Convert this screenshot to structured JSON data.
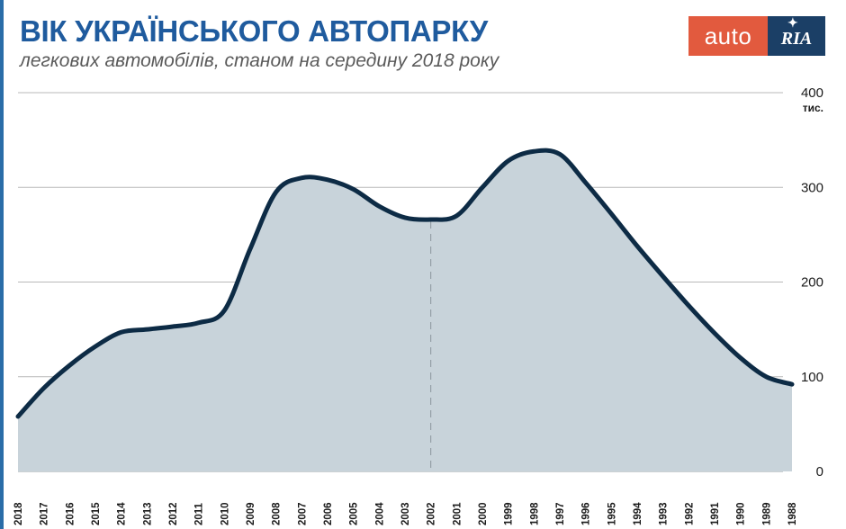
{
  "header": {
    "title": "ВІК УКРАЇНСЬКОГО АВТОПАРКУ",
    "subtitle": "легкових автомобілів, станом на середину 2018 року"
  },
  "logo": {
    "auto": "auto",
    "ria": "RIA"
  },
  "colors": {
    "title": "#1f5b9e",
    "line": "#0d2b45",
    "area": "#c8d3da",
    "logo_auto_bg": "#e25a3e",
    "logo_ria_bg": "#1b3f66",
    "left_bar": "#2a6da8"
  },
  "chart_data": {
    "type": "area",
    "x": [
      "2018",
      "2017",
      "2016",
      "2015",
      "2014",
      "2013",
      "2012",
      "2011",
      "2010",
      "2009",
      "2008",
      "2007",
      "2006",
      "2005",
      "2004",
      "2003",
      "2002",
      "2001",
      "2000",
      "1999",
      "1998",
      "1997",
      "1996",
      "1995",
      "1994",
      "1993",
      "1992",
      "1991",
      "1990",
      "1989",
      "1988"
    ],
    "series": [
      {
        "values": [
          58,
          88,
          112,
          132,
          147,
          150,
          153,
          157,
          170,
          235,
          295,
          310,
          308,
          298,
          280,
          268,
          266,
          270,
          300,
          328,
          338,
          335,
          305,
          272,
          238,
          206,
          175,
          146,
          120,
          100,
          92
        ]
      }
    ],
    "y_ticks": [
      0,
      100,
      200,
      300,
      400
    ],
    "y_ticks_text": [
      "0",
      "100",
      "200",
      "300",
      "400"
    ],
    "y_unit": "тис.",
    "ylim": [
      0,
      400
    ],
    "marker_x": "2002",
    "grid": true
  }
}
